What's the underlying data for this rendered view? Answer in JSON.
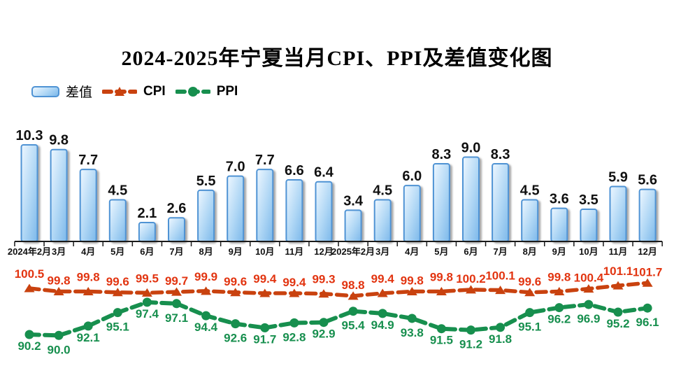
{
  "title": "2024-2025年宁夏当月CPI、PPI及差值变化图",
  "legend": {
    "bar_label": "差值",
    "cpi_label": "CPI",
    "ppi_label": "PPI"
  },
  "colors": {
    "bar_fill_light": "#eef7ff",
    "bar_fill_mid": "#b0d7f5",
    "bar_fill_dark": "#7cb8ea",
    "bar_border": "#4f93d4",
    "bar_shadow": "#9a9a9a",
    "cpi_line": "#c9420f",
    "cpi_label": "#e23410",
    "ppi_line": "#178f4e",
    "ppi_label": "#178f4e",
    "axis": "#1a1a1a",
    "bar_value_text": "#111111"
  },
  "chart_data": {
    "type": "combo",
    "title": "2024-2025年宁夏当月CPI、PPI及差值变化图",
    "categories": [
      "2024年2月",
      "3月",
      "4月",
      "5月",
      "6月",
      "7月",
      "8月",
      "9月",
      "10月",
      "11月",
      "12月",
      "2025年2月",
      "3月",
      "4月",
      "5月",
      "6月",
      "7月",
      "8月",
      "9月",
      "10月",
      "11月",
      "12月"
    ],
    "series": [
      {
        "name": "差值",
        "type": "bar",
        "values": [
          10.3,
          9.8,
          7.7,
          4.5,
          2.1,
          2.6,
          5.5,
          7.0,
          7.7,
          6.6,
          6.4,
          3.4,
          4.5,
          6.0,
          8.3,
          9.0,
          8.3,
          4.5,
          3.6,
          3.5,
          5.9,
          5.6
        ]
      },
      {
        "name": "CPI",
        "type": "line",
        "marker": "triangle",
        "values": [
          100.5,
          99.8,
          99.8,
          99.6,
          99.5,
          99.7,
          99.9,
          99.6,
          99.4,
          99.4,
          99.3,
          98.8,
          99.4,
          99.8,
          99.8,
          100.2,
          100.1,
          99.6,
          99.8,
          100.4,
          101.1,
          101.7
        ]
      },
      {
        "name": "PPI",
        "type": "line",
        "marker": "circle",
        "values": [
          90.2,
          90.0,
          92.1,
          95.1,
          97.4,
          97.1,
          94.4,
          92.6,
          91.7,
          92.8,
          92.9,
          95.4,
          94.9,
          93.8,
          91.5,
          91.2,
          91.8,
          95.1,
          96.2,
          96.9,
          95.2,
          96.1
        ]
      }
    ],
    "xlabel": "",
    "ylabel": "",
    "value_axis_visible": false,
    "grid": false,
    "legend_position": "top-left",
    "data_labels": true
  }
}
